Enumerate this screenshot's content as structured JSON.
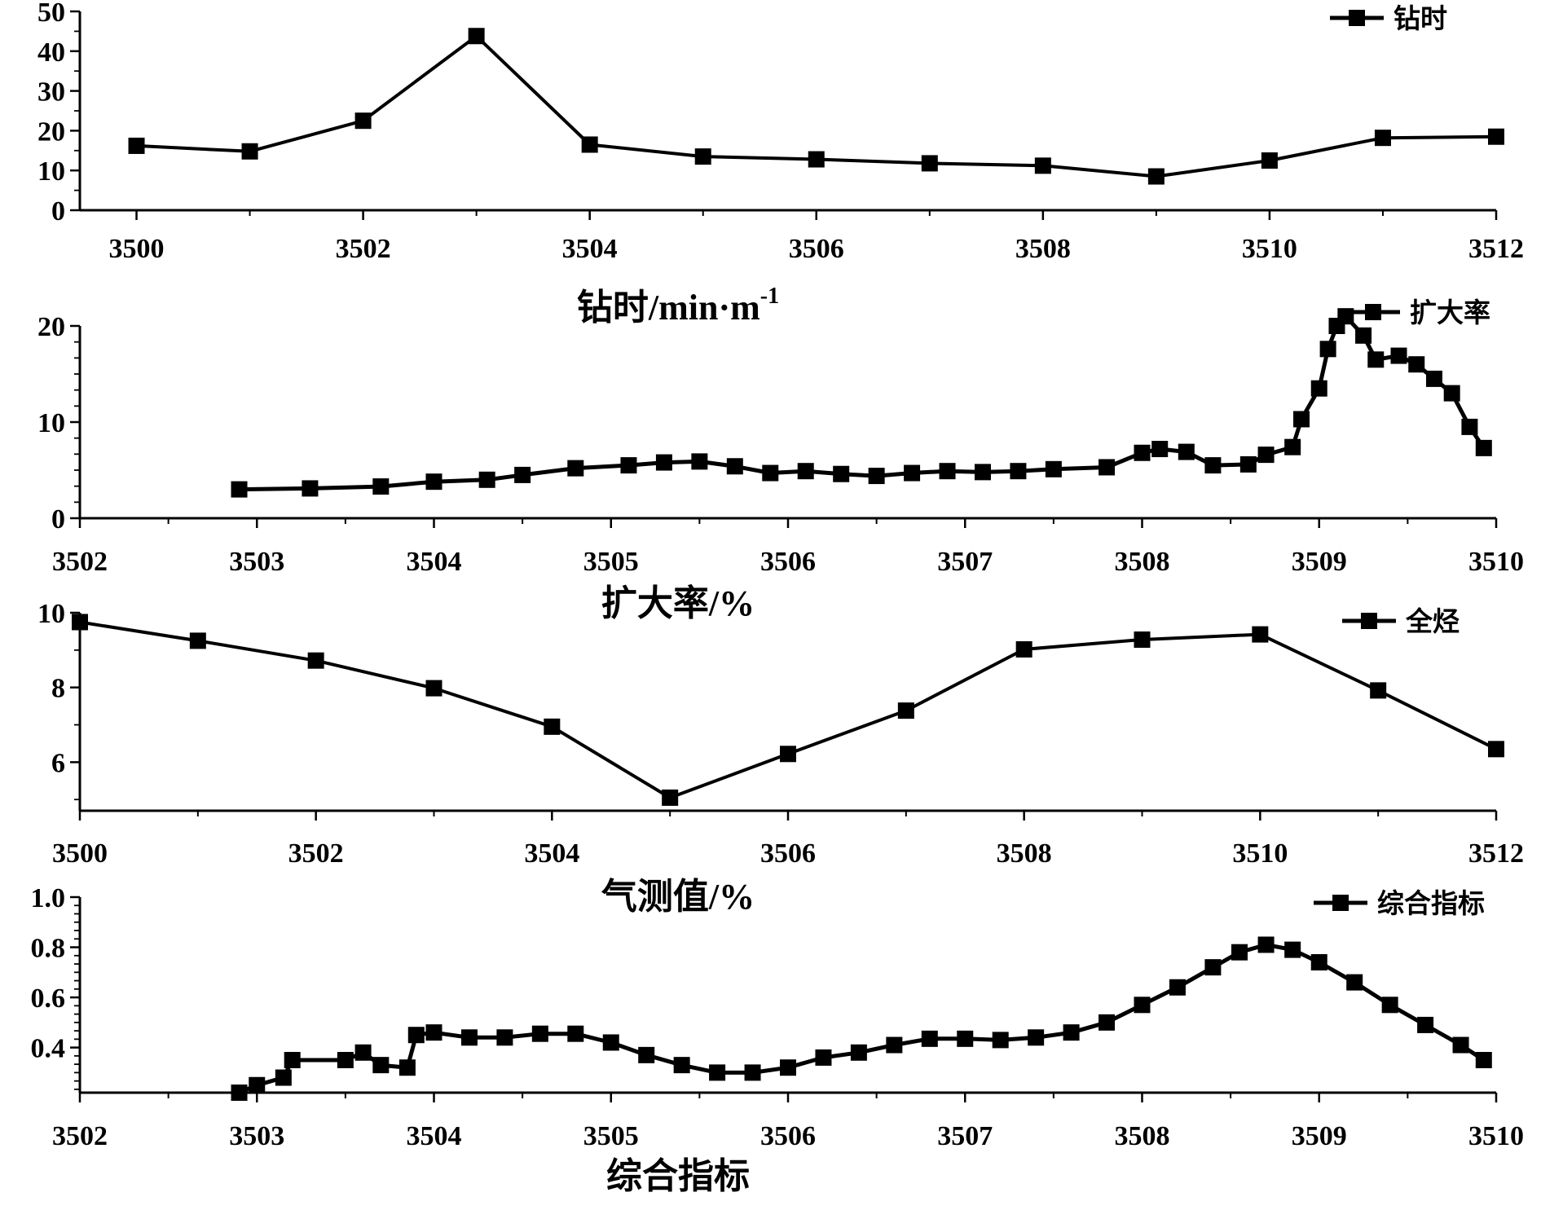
{
  "chart_data": [
    {
      "type": "line",
      "xlabel": "钻时/min·m-1",
      "xlabel_main": "钻时/min·m",
      "xlabel_sup": "-1",
      "xlim": [
        3499.5,
        3512
      ],
      "xticks": [
        3500,
        3502,
        3504,
        3506,
        3508,
        3510,
        3512
      ],
      "ylim": [
        0,
        50
      ],
      "yticks": [
        0,
        10,
        20,
        30,
        40,
        50
      ],
      "grid": false,
      "legend_position": "top-right",
      "series": [
        {
          "name": "钻时",
          "x": [
            3500,
            3501,
            3502,
            3503,
            3504,
            3505,
            3506,
            3507,
            3508,
            3509,
            3510,
            3511,
            3512
          ],
          "y": [
            16.2,
            14.8,
            22.5,
            43.8,
            16.5,
            13.5,
            12.8,
            11.8,
            11.2,
            8.5,
            12.5,
            18.2,
            18.5
          ]
        }
      ]
    },
    {
      "type": "line",
      "xlabel": "扩大率/%",
      "xlim": [
        3502,
        3510
      ],
      "xticks": [
        3502,
        3503,
        3504,
        3505,
        3506,
        3507,
        3508,
        3509,
        3510
      ],
      "ylim": [
        0,
        20
      ],
      "yticks": [
        0,
        10,
        20
      ],
      "grid": false,
      "legend_position": "top-right",
      "series": [
        {
          "name": "扩大率",
          "x": [
            3502.9,
            3503.3,
            3503.7,
            3504.0,
            3504.3,
            3504.5,
            3504.8,
            3505.1,
            3505.3,
            3505.5,
            3505.7,
            3505.9,
            3506.1,
            3506.3,
            3506.5,
            3506.7,
            3506.9,
            3507.1,
            3507.3,
            3507.5,
            3507.8,
            3508.0,
            3508.1,
            3508.25,
            3508.4,
            3508.6,
            3508.7,
            3508.85,
            3508.9,
            3509.0,
            3509.05,
            3509.1,
            3509.15,
            3509.25,
            3509.32,
            3509.45,
            3509.55,
            3509.65,
            3509.75,
            3509.85,
            3509.93
          ],
          "y": [
            3.0,
            3.1,
            3.3,
            3.8,
            4.0,
            4.5,
            5.2,
            5.5,
            5.8,
            5.9,
            5.4,
            4.7,
            4.9,
            4.6,
            4.4,
            4.7,
            4.9,
            4.8,
            4.9,
            5.1,
            5.3,
            6.8,
            7.2,
            6.9,
            5.5,
            5.6,
            6.6,
            7.4,
            10.3,
            13.5,
            17.6,
            20.0,
            21.0,
            19.0,
            16.5,
            16.9,
            16.0,
            14.5,
            13.0,
            9.5,
            7.3
          ]
        }
      ]
    },
    {
      "type": "line",
      "xlabel": "气测值/%",
      "xlim": [
        3500,
        3512
      ],
      "xticks": [
        3500,
        3502,
        3504,
        3506,
        3508,
        3510,
        3512
      ],
      "ylim": [
        4.7,
        10
      ],
      "yticks": [
        6,
        8,
        10
      ],
      "grid": false,
      "legend_position": "top-right",
      "series": [
        {
          "name": "全烃",
          "x": [
            3500,
            3501,
            3502,
            3503,
            3504,
            3505,
            3506,
            3507,
            3508,
            3509,
            3510,
            3511,
            3512
          ],
          "y": [
            9.75,
            9.25,
            8.72,
            7.98,
            6.95,
            5.05,
            6.22,
            7.38,
            9.02,
            9.28,
            9.42,
            7.92,
            6.35
          ]
        }
      ]
    },
    {
      "type": "line",
      "xlabel": "综合指标",
      "xlim": [
        3502,
        3510
      ],
      "xticks": [
        3502,
        3503,
        3504,
        3505,
        3506,
        3507,
        3508,
        3509,
        3510
      ],
      "ylim": [
        0.22,
        1.0
      ],
      "yticks": [
        0.4,
        0.6,
        0.8,
        1.0
      ],
      "yticklabels": [
        "0.4",
        "0.6",
        "0.8",
        "1.0"
      ],
      "grid": false,
      "legend_position": "top-right",
      "series": [
        {
          "name": "综合指标",
          "x": [
            3502.9,
            3503.0,
            3503.15,
            3503.2,
            3503.5,
            3503.6,
            3503.7,
            3503.85,
            3503.9,
            3504.0,
            3504.2,
            3504.4,
            3504.6,
            3504.8,
            3505.0,
            3505.2,
            3505.4,
            3505.6,
            3505.8,
            3506.0,
            3506.2,
            3506.4,
            3506.6,
            3506.8,
            3507.0,
            3507.2,
            3507.4,
            3507.6,
            3507.8,
            3508.0,
            3508.2,
            3508.4,
            3508.55,
            3508.7,
            3508.85,
            3509.0,
            3509.2,
            3509.4,
            3509.6,
            3509.8,
            3509.93
          ],
          "y": [
            0.22,
            0.25,
            0.28,
            0.35,
            0.35,
            0.38,
            0.33,
            0.32,
            0.45,
            0.46,
            0.44,
            0.44,
            0.455,
            0.455,
            0.42,
            0.37,
            0.33,
            0.3,
            0.3,
            0.32,
            0.36,
            0.38,
            0.41,
            0.435,
            0.435,
            0.43,
            0.44,
            0.46,
            0.5,
            0.57,
            0.64,
            0.72,
            0.78,
            0.81,
            0.79,
            0.74,
            0.66,
            0.57,
            0.49,
            0.41,
            0.35
          ]
        }
      ]
    }
  ]
}
